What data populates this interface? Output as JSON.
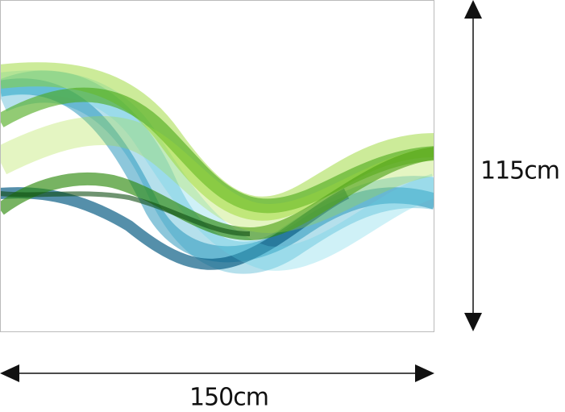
{
  "dimensions": {
    "height": "115cm",
    "width": "150cm"
  }
}
